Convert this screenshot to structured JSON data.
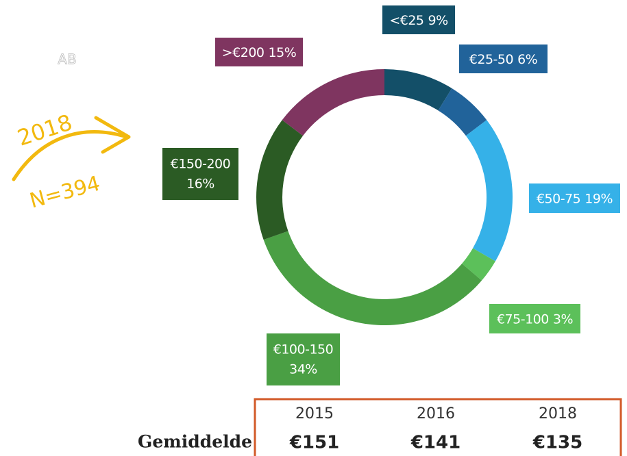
{
  "chart_data": {
    "type": "donut",
    "categories": [
      "<€25",
      "€25-50",
      "€50-75",
      "€75-100",
      "€100-150",
      "€150-200",
      ">€200"
    ],
    "values": [
      9,
      6,
      19,
      3,
      34,
      16,
      15
    ],
    "value_labels": [
      "9%",
      "6%",
      "19%",
      "3%",
      "34%",
      "16%",
      "15%"
    ],
    "colors": [
      "#134f68",
      "#21639a",
      "#35b1e8",
      "#5cc05a",
      "#4a9f44",
      "#2b5b24",
      "#7f3560"
    ],
    "watermark": "AB",
    "annotation_year": "2018",
    "annotation_n": "N=394"
  },
  "table": {
    "header": [
      "2015",
      "2016",
      "2018"
    ],
    "row_label": "Gemiddelde",
    "row": [
      "€151",
      "€141",
      "€135"
    ]
  }
}
